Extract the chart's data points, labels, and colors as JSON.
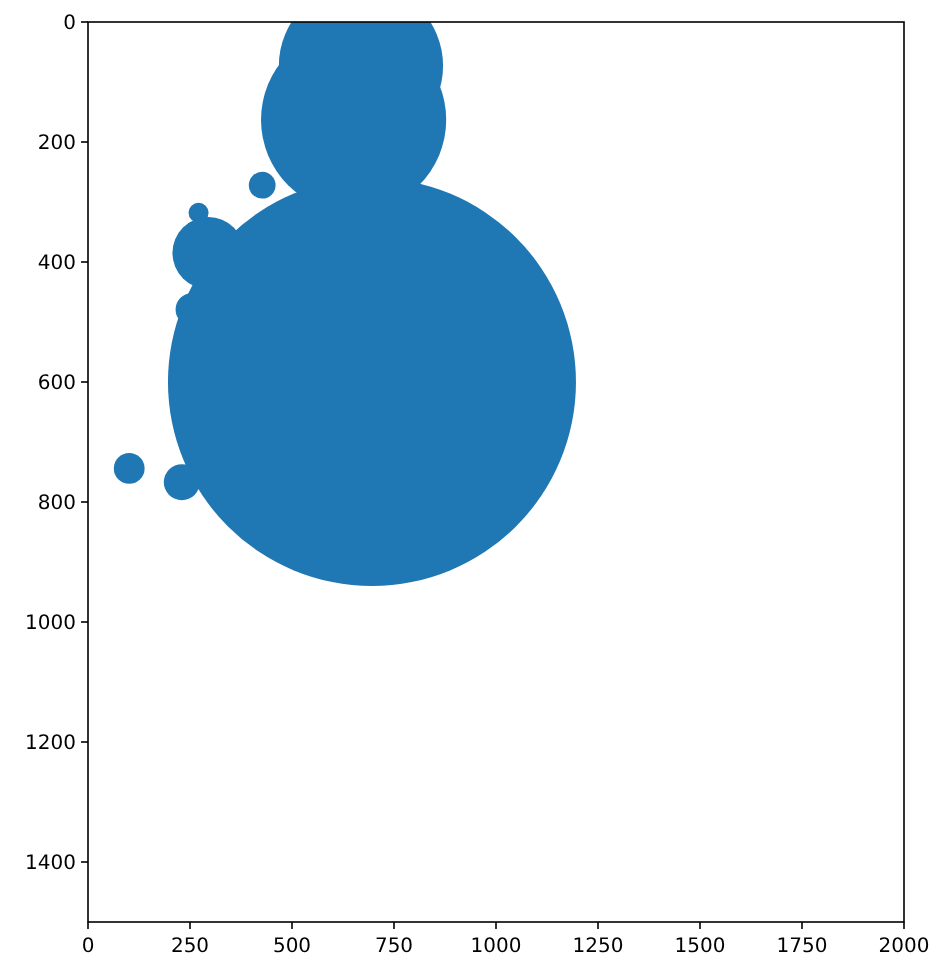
{
  "chart_data": {
    "type": "bubble",
    "x": [
      696,
      669,
      651,
      427,
      271,
      295,
      254,
      101,
      230
    ],
    "values": [
      600,
      73,
      163,
      272,
      318,
      385,
      479,
      744,
      767
    ],
    "sizes": [
      1,
      0.162,
      0.206,
      0.0043,
      0.0024,
      0.031,
      0.0062,
      0.0057,
      0.0078
    ],
    "color": "#1f77b4",
    "xlim": [
      0,
      2000
    ],
    "ylim": [
      1500,
      0
    ],
    "xticks": [
      0,
      250,
      500,
      750,
      1000,
      1250,
      1500,
      1750,
      2000
    ],
    "yticks": [
      0,
      200,
      400,
      600,
      800,
      1000,
      1200,
      1400
    ]
  }
}
